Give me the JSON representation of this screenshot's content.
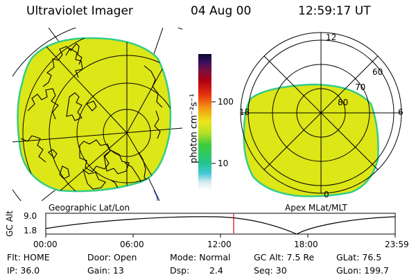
{
  "header": {
    "instrument": "Ultraviolet Imager",
    "date": "04 Aug 00",
    "time": "12:59:17 UT"
  },
  "colorbar": {
    "unit_label": "photon cm⁻²s⁻¹",
    "ticks": [
      {
        "value": 100,
        "label": "100"
      },
      {
        "value": 10,
        "label": "10"
      }
    ],
    "scale": "log"
  },
  "left_panel": {
    "caption": "Geographic Lat/Lon"
  },
  "right_panel": {
    "caption": "Apex MLat/MLT",
    "mlt_labels": {
      "top": "12",
      "left": "18",
      "right": "6",
      "bottom": "0"
    },
    "lat_labels": [
      "60",
      "70",
      "80"
    ]
  },
  "altitude_plot": {
    "ylabel": "GC Alt",
    "yticks": [
      "9.0",
      "1.8"
    ],
    "xticks": [
      "00:00",
      "06:00",
      "12:00",
      "18:00",
      "23:59"
    ],
    "marker_time": "12:59"
  },
  "status": {
    "flt": "Flt: HOME",
    "ip": "IP: 36.0",
    "door": "Door: Open",
    "gain": "Gain: 13",
    "mode": "Mode: Normal",
    "dsp_label": "Dsp:",
    "dsp_value": "2.4",
    "gc_alt": "GC Alt: 7.5 Re",
    "seq": "Seq: 30",
    "glat": "GLat: 76.5",
    "glon": "GLon: 199.7"
  },
  "colors": {
    "image_fill": "#dde616",
    "image_edge": "#33cc88",
    "marker": "#dd0000"
  }
}
